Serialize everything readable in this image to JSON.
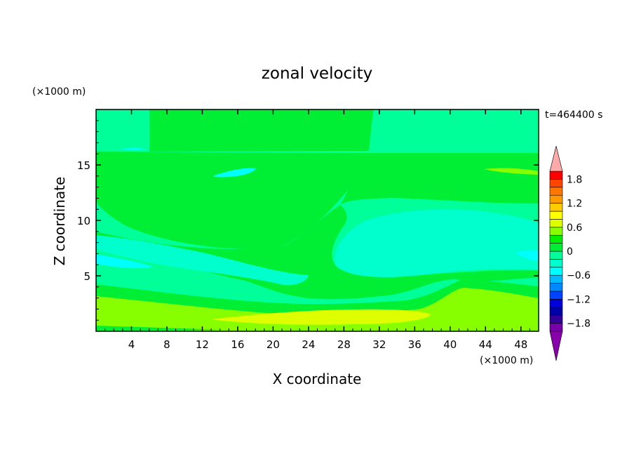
{
  "chart_data": {
    "type": "heatmap",
    "title": "zonal velocity",
    "xlabel": "X coordinate",
    "ylabel": "Z coordinate",
    "x_unit": "(×1000 m)",
    "y_unit": "(×1000 m)",
    "time_label": "t=464400 s",
    "xlim": [
      0,
      50
    ],
    "ylim": [
      0,
      20
    ],
    "x_ticks": [
      4,
      8,
      12,
      16,
      20,
      24,
      28,
      32,
      36,
      40,
      44,
      48
    ],
    "y_ticks": [
      5,
      10,
      15
    ],
    "colorbar": {
      "levels": [
        -1.8,
        -1.2,
        -0.6,
        0,
        0.6,
        1.2,
        1.8
      ],
      "tick_labels": [
        "1.8",
        "1.2",
        "0.6",
        "0",
        "−0.6",
        "−1.2",
        "−1.8"
      ],
      "range": [
        -2.0,
        2.0
      ],
      "step": 0.2,
      "extend": "both"
    },
    "field_approx": [
      {
        "region": "upper-left band",
        "value": 0.0
      },
      {
        "region": "upper-middle tongue x 6-32 km, z 12-20 km",
        "value": 0.1
      },
      {
        "region": "upper-right",
        "value": -0.1
      },
      {
        "region": "mid-right cell x 28-50 km, z 5-11 km",
        "value": -0.3
      },
      {
        "region": "mid-left layer z 4-9 km",
        "value": -0.3
      },
      {
        "region": "lower band z 2-4 km",
        "value": 0.1
      },
      {
        "region": "low-level jet z 0.5-2 km",
        "value": 0.5
      },
      {
        "region": "jet core x 20-36 km",
        "value": 0.7
      }
    ]
  }
}
